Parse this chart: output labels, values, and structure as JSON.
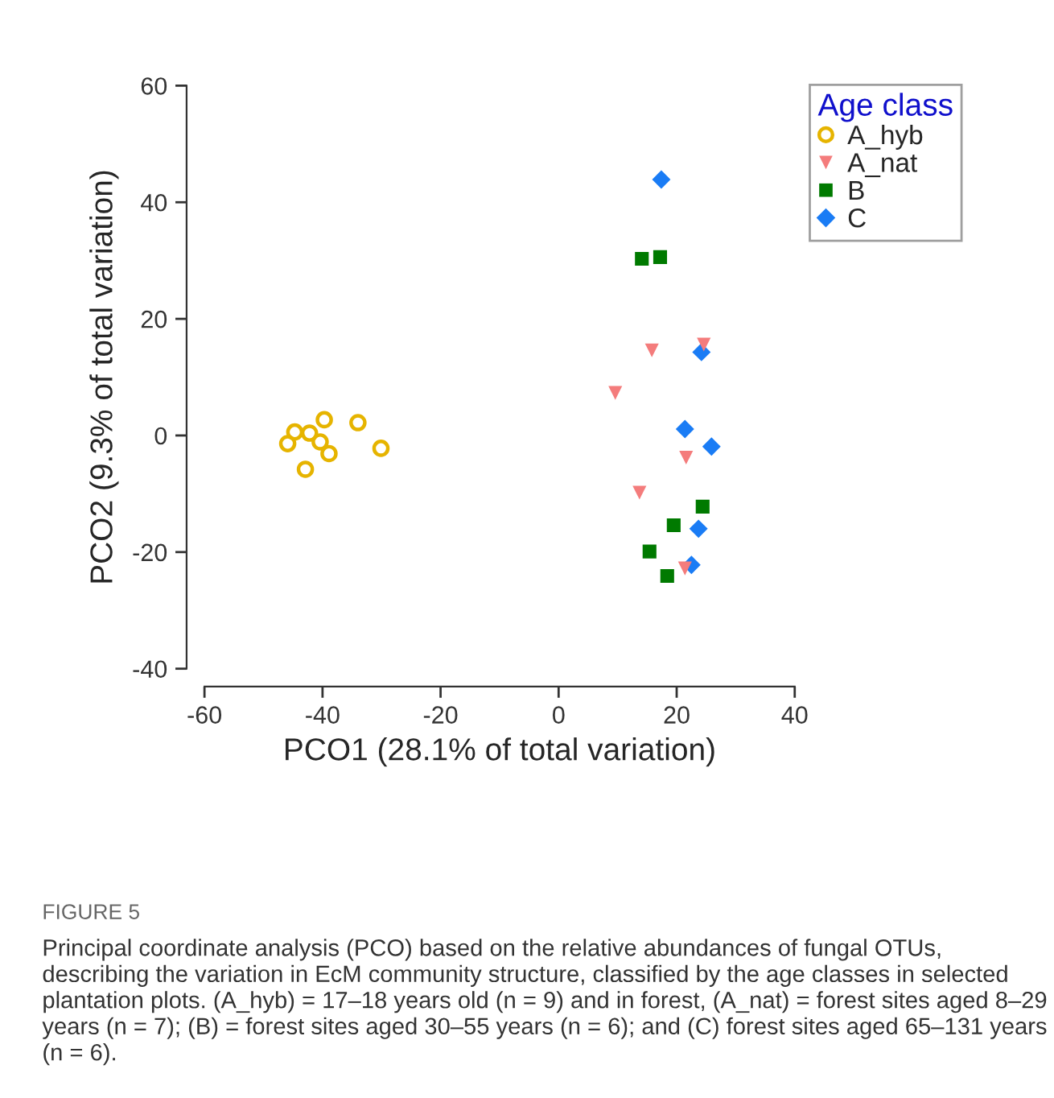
{
  "chart_data": {
    "type": "scatter",
    "xlabel": "PCO1 (28.1% of total variation)",
    "ylabel": "PCO2 (9.3% of total variation)",
    "legend_title": "Age class",
    "legend": "top right",
    "grid": false,
    "xlim": [
      -60,
      40
    ],
    "xticks": [
      -60,
      -40,
      -20,
      0,
      20,
      40
    ],
    "ylim": [
      -40,
      60
    ],
    "yticks": [
      -40,
      -20,
      0,
      20,
      40,
      60
    ],
    "series": [
      {
        "name": "A_hyb",
        "color": "#e6b400",
        "marker": "circle",
        "x": [
          -45.9,
          -44.7,
          -42.2,
          -39.7,
          -40.4,
          -38.9,
          -42.9,
          -34.0,
          -30.1
        ],
        "values": [
          -1.4,
          0.6,
          0.4,
          2.7,
          -1.1,
          -3.1,
          -5.8,
          2.2,
          -2.2
        ]
      },
      {
        "name": "A_nat",
        "color": "#f47c7c",
        "marker": "triangle",
        "x": [
          15.8,
          24.6,
          9.6,
          21.6,
          13.7,
          21.4
        ],
        "values": [
          14.6,
          15.6,
          7.3,
          -3.8,
          -9.8,
          -22.8
        ]
      },
      {
        "name": "B",
        "color": "#007a00",
        "marker": "square",
        "x": [
          14.1,
          17.2,
          24.4,
          19.5,
          15.4,
          18.4
        ],
        "values": [
          30.3,
          30.6,
          -12.2,
          -15.4,
          -19.9,
          -24.1
        ]
      },
      {
        "name": "C",
        "color": "#1a7cf5",
        "marker": "diamond",
        "x": [
          17.4,
          24.2,
          21.4,
          25.9,
          23.7,
          22.5
        ],
        "values": [
          43.9,
          14.3,
          1.1,
          -1.9,
          -16.0,
          -22.2
        ]
      }
    ],
    "annotations": [
      "FIGURE 5",
      "Principal coordinate analysis (PCO) based on the relative abundances of fungal OTUs, describing the variation in EcM community structure, classified by the age classes in selected plantation plots. (A_hyb) = 17–18 years old (n = 9) and in forest, (A_nat) = forest sites aged 8–29 years (n = 7); (B) = forest sites aged 30–55 years (n = 6); and (C) forest sites aged 65–131 years (n = 6)."
    ]
  }
}
